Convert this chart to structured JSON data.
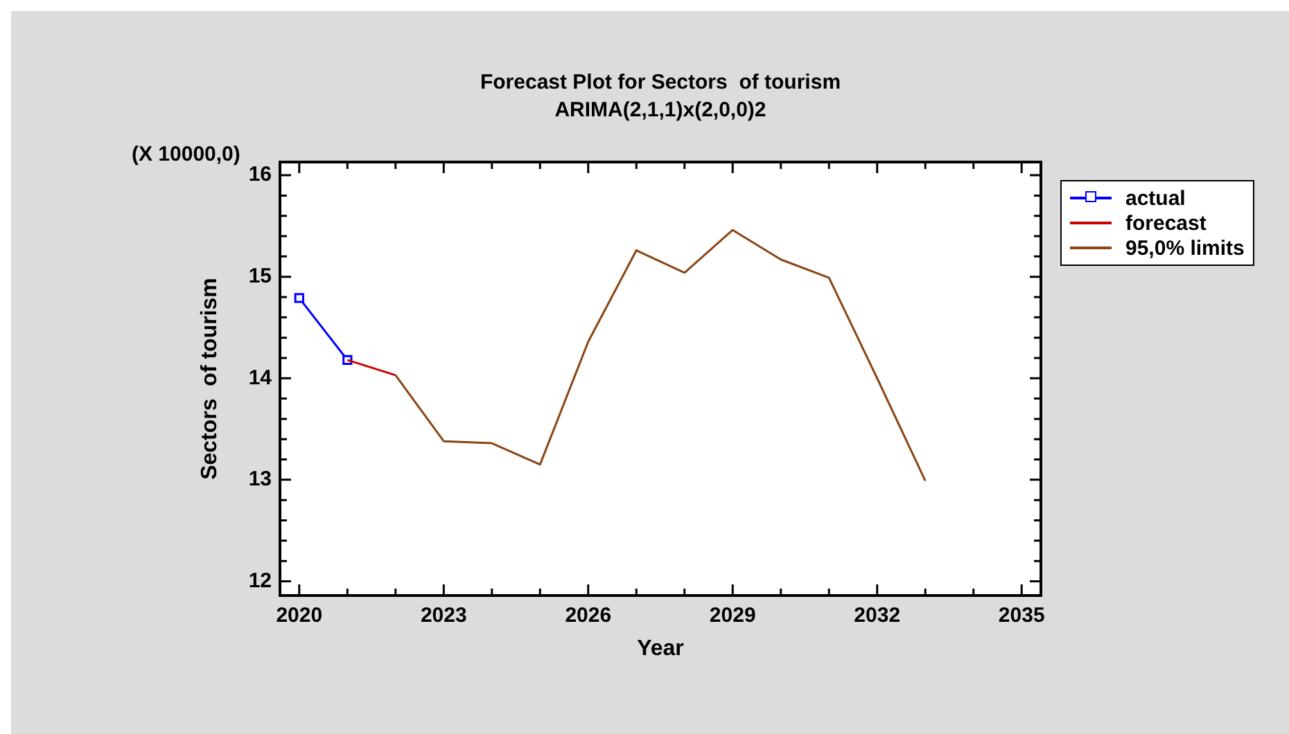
{
  "chart_data": {
    "type": "line",
    "title": "Forecast Plot for Sectors  of tourism",
    "subtitle": "ARIMA(2,1,1)x(2,0,0)2",
    "xlabel": "Year",
    "ylabel": "Sectors  of tourism",
    "annotations": [
      "(X 10000,0)"
    ],
    "xlim": [
      2019.6,
      2035.4
    ],
    "xticks": [
      2020,
      {
        "value": 2021,
        "label": null
      },
      {
        "value": 2022,
        "label": null
      },
      2023,
      {
        "value": 2024,
        "label": null
      },
      {
        "value": 2025,
        "label": null
      },
      2026,
      {
        "value": 2027,
        "label": null
      },
      {
        "value": 2028,
        "label": null
      },
      2029,
      {
        "value": 2030,
        "label": null
      },
      {
        "value": 2031,
        "label": null
      },
      2032,
      {
        "value": 2033,
        "label": null
      },
      {
        "value": 2034,
        "label": null
      },
      2035
    ],
    "ylim": [
      11.86,
      16.13
    ],
    "yticks": [
      12,
      {
        "value": 12.2,
        "label": null
      },
      {
        "value": 12.4,
        "label": null
      },
      {
        "value": 12.6,
        "label": null
      },
      {
        "value": 12.8,
        "label": null
      },
      13,
      {
        "value": 13.2,
        "label": null
      },
      {
        "value": 13.4,
        "label": null
      },
      {
        "value": 13.6,
        "label": null
      },
      {
        "value": 13.8,
        "label": null
      },
      14,
      {
        "value": 14.2,
        "label": null
      },
      {
        "value": 14.4,
        "label": null
      },
      {
        "value": 14.6,
        "label": null
      },
      {
        "value": 14.8,
        "label": null
      },
      15,
      {
        "value": 15.2,
        "label": null
      },
      {
        "value": 15.4,
        "label": null
      },
      {
        "value": 15.6,
        "label": null
      },
      {
        "value": 15.8,
        "label": null
      },
      16
    ],
    "grid": false,
    "legend": "right",
    "line_style": "solid",
    "series": [
      {
        "name": "actual",
        "color": "#0000ff",
        "marker": "square",
        "x": [
          2020,
          2021
        ],
        "values": [
          14.79,
          14.18
        ]
      },
      {
        "name": "forecast",
        "color": "#cc0000",
        "marker": "none",
        "x": [
          2021,
          2022
        ],
        "values": [
          14.18,
          14.03
        ]
      },
      {
        "name": "95,0% limits",
        "color": "#8b4513",
        "marker": "none",
        "x": [
          2022,
          2023,
          2024,
          2025,
          2026,
          2027,
          2028,
          2029,
          2030,
          2031,
          2032,
          2033
        ],
        "values": [
          14.03,
          13.38,
          13.36,
          13.15,
          14.36,
          15.26,
          15.04,
          15.46,
          15.17,
          14.99,
          14.0,
          12.99
        ]
      }
    ]
  }
}
